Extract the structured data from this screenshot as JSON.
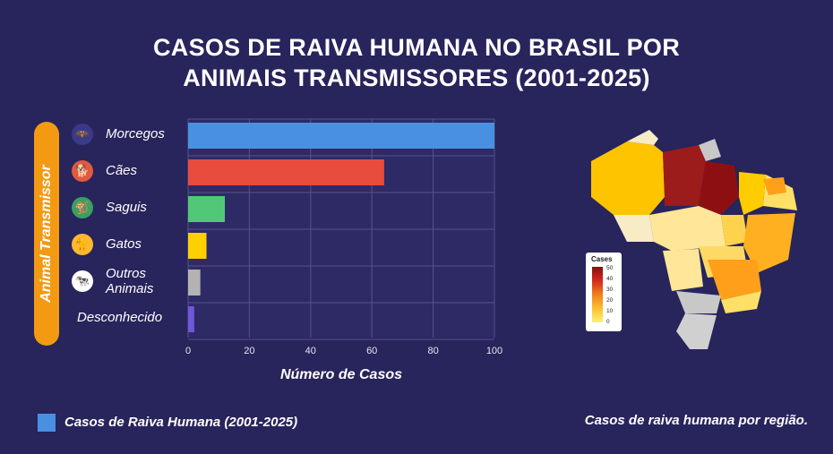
{
  "title": {
    "line1": "CASOS DE RAIVA HUMANA NO BRASIL POR",
    "line2": "ANIMAIS TRANSMISSORES (2001-2025)"
  },
  "chart_data": {
    "type": "bar",
    "orientation": "horizontal",
    "categories": [
      "Morcegos",
      "Cães",
      "Saguis",
      "Gatos",
      "Outros Animais",
      "Desconhecido"
    ],
    "series": [
      {
        "name": "Casos de Raiva Humana (2001-2025)",
        "values": [
          100,
          64,
          12,
          6,
          4,
          2
        ]
      }
    ],
    "bar_colors": [
      "#4a90e2",
      "#e84c3d",
      "#50c878",
      "#ffd000",
      "#b3b3b3",
      "#6f58d8"
    ],
    "xlabel": "Número de Casos",
    "ylabel": "Animal Transmissor",
    "xlim": [
      0,
      100
    ],
    "xticks": [
      0,
      20,
      40,
      60,
      80,
      100
    ],
    "grid": true,
    "legend_position": "bottom-left"
  },
  "icons": [
    "bat-icon",
    "dog-icon",
    "marmoset-icon",
    "cat-icon",
    "cow-icon"
  ],
  "map": {
    "caption": "Casos de raiva humana por região.",
    "colorbar": {
      "title": "Cases",
      "ticks": [
        "50",
        "40",
        "30",
        "20",
        "10",
        "0"
      ]
    }
  }
}
